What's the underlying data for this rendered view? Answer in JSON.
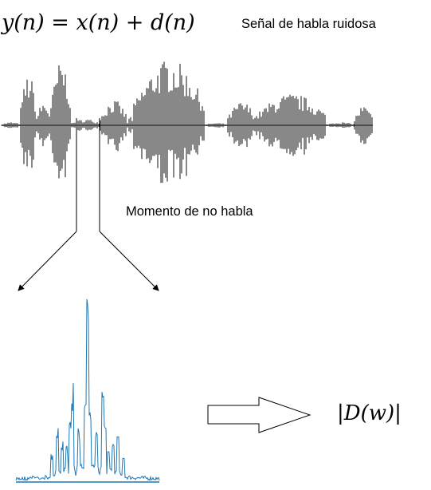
{
  "equation": "y(n) = x(n) + d(n)",
  "signal_label": "Señal de habla ruidosa",
  "silence_label": "Momento de no habla",
  "result_label": "|D(w)|",
  "colors": {
    "waveform": "#111111",
    "spectrum": "#1f77b4",
    "arrows": "#000000"
  },
  "icons": [
    "speech-waveform",
    "selection-bracket-lines",
    "split-arrows",
    "noise-spectrum",
    "block-arrow-right"
  ]
}
